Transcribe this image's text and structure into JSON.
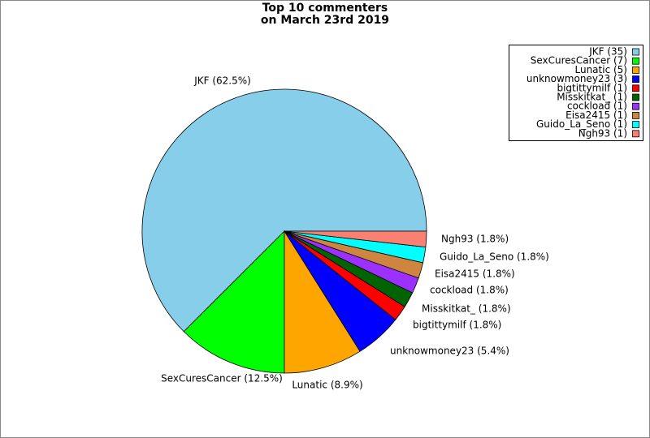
{
  "chart_data": {
    "type": "pie",
    "title": [
      "Top 10 commenters",
      "on March 23rd 2019"
    ],
    "values": [
      35,
      7,
      5,
      3,
      1,
      1,
      1,
      1,
      1,
      1
    ],
    "value_labels": [
      "JKF (35)",
      "SexCuresCancer (7)",
      "Lunatic (5)",
      "unknowmoney23 (3)",
      "bigtittymilf (1)",
      "Misskitkat_ (1)",
      "cockload (1)",
      "Eisa2415 (1)",
      "Guido_La_Seno (1)",
      "Ngh93 (1)"
    ],
    "percentages": [
      62.5,
      12.5,
      8.9,
      5.4,
      1.8,
      1.8,
      1.8,
      1.8,
      1.8,
      1.8
    ],
    "percentage_labels": [
      "JKF (62.5%)",
      "SexCuresCancer (12.5%)",
      "Lunatic (8.9%)",
      "unknowmoney23 (5.4%)",
      "bigtittymilf (1.8%)",
      "Misskitkat_ (1.8%)",
      "cockload (1.8%)",
      "Eisa2415 (1.8%)",
      "Guido_La_Seno (1.8%)",
      "Ngh93 (1.8%)"
    ],
    "colors": [
      "#87ceeb",
      "#00ff00",
      "#ffa500",
      "#0000ff",
      "#ff0000",
      "#006400",
      "#9b30ff",
      "#cd853f",
      "#00ffff",
      "#fa8072"
    ],
    "legend": "upper right"
  }
}
